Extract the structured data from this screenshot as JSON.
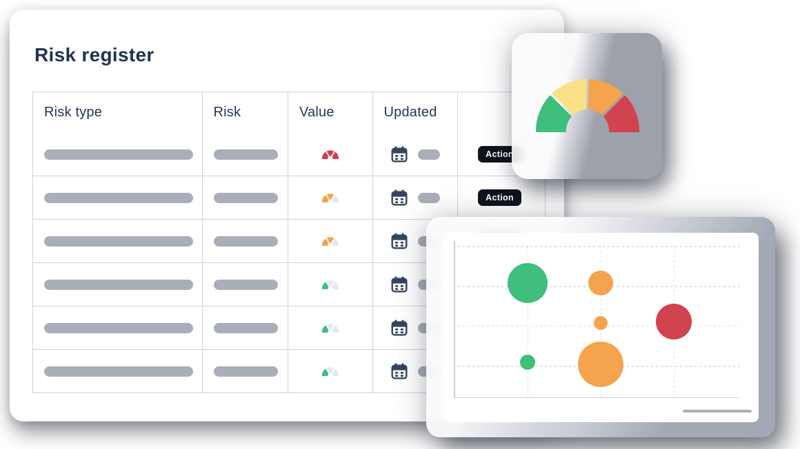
{
  "page_title": "Risk register",
  "risk_table": {
    "headers": [
      "Risk type",
      "Risk",
      "Value",
      "Updated",
      ""
    ],
    "action_label": "Action",
    "rows": [
      {
        "value_gauge_segments": [
          "red",
          "red",
          "red"
        ]
      },
      {
        "value_gauge_segments": [
          "orange",
          "orange",
          "muted"
        ]
      },
      {
        "value_gauge_segments": [
          "orange",
          "orange",
          "muted"
        ]
      },
      {
        "value_gauge_segments": [
          "green",
          "muted",
          "muted"
        ]
      },
      {
        "value_gauge_segments": [
          "green",
          "muted",
          "muted"
        ]
      },
      {
        "value_gauge_segments": [
          "green",
          "muted",
          "muted"
        ]
      }
    ]
  },
  "gauge_card": {
    "segments": [
      "green",
      "yellow",
      "orange",
      "red"
    ]
  },
  "chart_data": {
    "type": "bubble",
    "title": "",
    "xlabel": "",
    "ylabel": "",
    "tick_labels": [],
    "legend": "none",
    "grid": "dashed",
    "gridline_fractions": {
      "vertical": [
        0.258,
        0.514,
        0.77
      ],
      "horizontal": [
        0.031,
        0.285,
        0.539,
        0.794
      ]
    },
    "points": [
      {
        "x": 0.258,
        "y": 0.268,
        "r": 29,
        "color": "green"
      },
      {
        "x": 0.514,
        "y": 0.268,
        "r": 18,
        "color": "orange"
      },
      {
        "x": 0.514,
        "y": 0.522,
        "r": 10,
        "color": "orange"
      },
      {
        "x": 0.77,
        "y": 0.513,
        "r": 26,
        "color": "red"
      },
      {
        "x": 0.258,
        "y": 0.77,
        "r": 11,
        "color": "green"
      },
      {
        "x": 0.514,
        "y": 0.785,
        "r": 33,
        "color": "orange"
      }
    ]
  },
  "colors": {
    "green": "#3fbe7c",
    "yellow": "#f9e187",
    "orange": "#f5a34c",
    "red": "#d0434f",
    "muted": "#e4e8ef",
    "pill_gray": "#a9aeb9",
    "calendar_navy": "#34455e",
    "header_text": "#24364f",
    "title_text": "#203450",
    "table_border": "#c9d2e1",
    "action_bg": "#10141f",
    "action_text": "#ffffff",
    "axis_gray": "#c7cdd9",
    "grid_dash": "#d9dde6",
    "scroll_line": "#a9aeb8"
  }
}
